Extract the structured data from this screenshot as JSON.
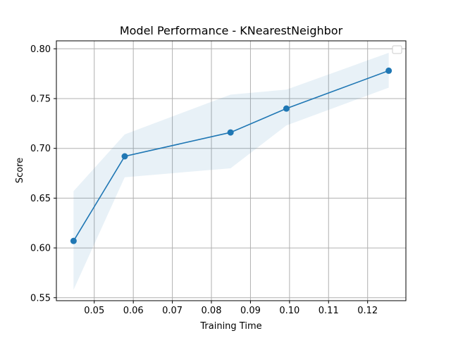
{
  "chart_data": {
    "type": "line",
    "title": "Model Performance - KNearestNeighbor",
    "xlabel": "Training Time",
    "ylabel": "Score",
    "xlim": [
      0.0403,
      0.1298
    ],
    "ylim": [
      0.547,
      0.808
    ],
    "xticks": [
      0.05,
      0.06,
      0.07,
      0.08,
      0.09,
      0.1,
      0.11,
      0.12
    ],
    "xtick_labels": [
      "0.05",
      "0.06",
      "0.07",
      "0.08",
      "0.09",
      "0.10",
      "0.11",
      "0.12"
    ],
    "yticks": [
      0.55,
      0.6,
      0.65,
      0.7,
      0.75,
      0.8
    ],
    "ytick_labels": [
      "0.55",
      "0.60",
      "0.65",
      "0.70",
      "0.75",
      "0.80"
    ],
    "grid": true,
    "legend": "top-right (empty)",
    "series": [
      {
        "x": [
          0.0447,
          0.0578,
          0.0849,
          0.0992,
          0.1254
        ],
        "values": [
          0.607,
          0.692,
          0.716,
          0.74,
          0.778
        ],
        "upper": [
          0.657,
          0.714,
          0.754,
          0.759,
          0.796
        ],
        "lower": [
          0.558,
          0.671,
          0.68,
          0.723,
          0.761
        ],
        "color": "#1f77b4",
        "band_color": "#1f77b4"
      }
    ]
  }
}
